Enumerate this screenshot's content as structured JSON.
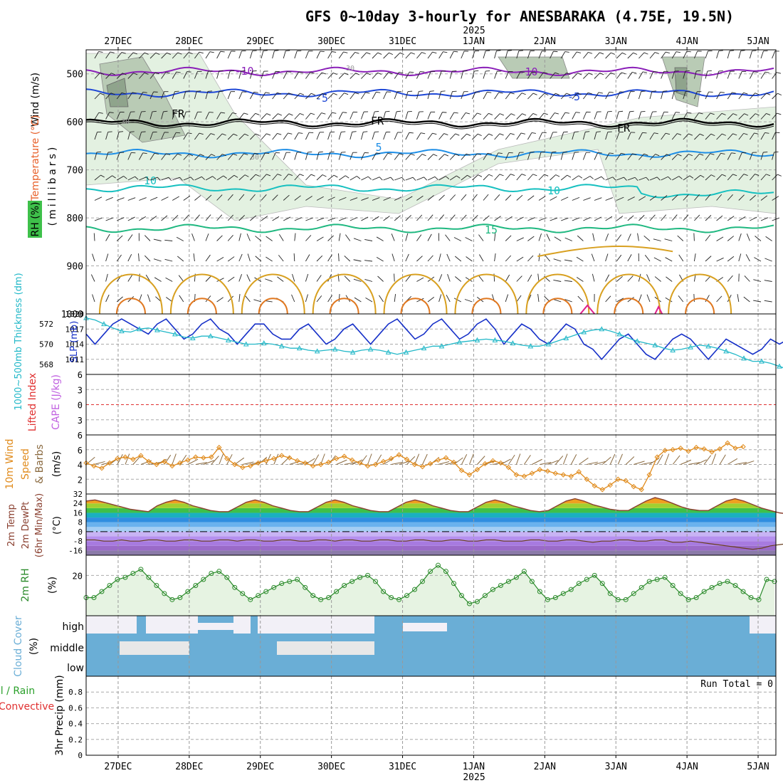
{
  "title": "GFS 0~10day 3-hourly for ANESBARAKA (4.75E, 19.5N)",
  "year_label": "2025",
  "x_axis": {
    "dates": [
      "27DEC",
      "28DEC",
      "29DEC",
      "30DEC",
      "31DEC",
      "1JAN",
      "2JAN",
      "3JAN",
      "4JAN",
      "5JAN"
    ],
    "range_days": [
      -0.45,
      9.25
    ]
  },
  "colors": {
    "rh_band_light": "#e3f1e1",
    "rh_band_mid": "#b9cbb5",
    "rh_band_dark": "#8fa48c",
    "temp_minus10": "#8a1fb8",
    "temp_minus5": "#1f48d6",
    "temp_freezing": "#000000",
    "temp_5": "#1e8ee6",
    "temp_10": "#17c0c0",
    "temp_15": "#1fb880",
    "temp_20": "#d8a020",
    "temp_25": "#e07820",
    "temp_30": "#e0208c",
    "slp": "#1630c8",
    "thickness": "#22b8c8",
    "lifted_index": "#e03030",
    "cape": "#c060e0",
    "wind10m": "#e08a1a",
    "barbs10m": "#8a6a40",
    "temp2m": "#8a4030",
    "rh2m": "#2a8a2a",
    "rh2m_fill": "#e6f3e2",
    "cloud": "#6aaed6",
    "cloud_empty": "#f2f0f7",
    "cloud_gap": "#e8e8e8"
  },
  "panels": {
    "upper_air": {
      "ylabel_wind": "Wind (m/s)",
      "ylabel_temp": "Temperature (°C)",
      "ylabel_rh": "RH (%)",
      "ylabel_unit": "(millibars)",
      "y_ticks": [
        "500",
        "600",
        "700",
        "800",
        "900",
        "1000"
      ],
      "contour_labels": [
        "-10",
        "-10",
        "-5",
        "-5",
        "FR",
        "FR",
        "FR",
        "5",
        "10",
        "10",
        "15",
        "30",
        "30",
        "30"
      ]
    },
    "slp": {
      "ylabel_thk": "1000~500mb Thickness (dm)",
      "ylabel_slp": "SLP (mb)",
      "left_ticks": [
        "572",
        "570",
        "568"
      ],
      "right_ticks": [
        "1020",
        "1017",
        "1014",
        "1011"
      ]
    },
    "cape": {
      "ylabel_li": "Lifted Index",
      "ylabel_cape": "CAPE (J/kg)",
      "ticks": [
        "6",
        "3",
        "0",
        "3",
        "6"
      ]
    },
    "wind10m": {
      "ylabel_a": "10m Wind",
      "ylabel_b": "Speed",
      "ylabel_c": "& Barbs",
      "ylabel_unit": "(m/s)",
      "ticks": [
        "6",
        "4",
        "2"
      ]
    },
    "temp2m": {
      "ylabel_a": "2m Temp",
      "ylabel_b": "2m DewPt",
      "ylabel_c": "(6hr Min/Max)",
      "ylabel_unit": "(°C)",
      "ticks": [
        "32",
        "24",
        "16",
        "8",
        "0",
        "-8",
        "-16"
      ]
    },
    "rh2m": {
      "ylabel": "2m RH",
      "ylabel_unit": "(%)",
      "ticks": [
        "20"
      ]
    },
    "cloud": {
      "ylabel": "Cloud Cover",
      "ylabel_unit": "(%)",
      "levels": [
        "high",
        "middle",
        "low"
      ]
    },
    "precip": {
      "ylabel_a": "Total / Rain",
      "ylabel_b": "Convective",
      "ylabel_c": "3hr Precip (mm)",
      "ticks": [
        "0.8",
        "0.6",
        "0.4",
        "0.2",
        "0"
      ],
      "run_total": "Run Total = 0"
    }
  },
  "chart_data": [
    {
      "name": "upper_air_cross_section",
      "type": "heatmap",
      "y_axis": "pressure (mb)",
      "ylim": [
        1000,
        450
      ],
      "isotherm_mean_pressure": {
        "-10": 495,
        "-5": 540,
        "0": 602,
        "5": 666,
        "10": 738,
        "15": 822
      },
      "x_days_index_step": 0.125
    },
    {
      "name": "slp_thickness",
      "type": "line",
      "x_step_days": 0.125,
      "x_start": -0.45,
      "series": [
        {
          "name": "SLP (mb)",
          "values": [
            1016,
            1014,
            1016,
            1018,
            1019,
            1018,
            1017,
            1016,
            1018,
            1019,
            1017,
            1015,
            1016,
            1018,
            1019,
            1017,
            1016,
            1014,
            1016,
            1018,
            1018,
            1016,
            1015,
            1015,
            1017,
            1018,
            1016,
            1014,
            1015,
            1017,
            1018,
            1016,
            1014,
            1016,
            1018,
            1019,
            1017,
            1015,
            1016,
            1018,
            1019,
            1017,
            1015,
            1016,
            1018,
            1019,
            1017,
            1014,
            1016,
            1018,
            1017,
            1015,
            1014,
            1016,
            1018,
            1017,
            1014,
            1013,
            1011,
            1013,
            1015,
            1016,
            1014,
            1012,
            1011,
            1013,
            1015,
            1016,
            1015,
            1013,
            1011,
            1013,
            1015,
            1014,
            1013,
            1012,
            1013,
            1015,
            1014,
            1015
          ]
        },
        {
          "name": "Thickness (dm)",
          "values": [
            572.6,
            572.4,
            572.0,
            571.6,
            571.3,
            571.2,
            571.5,
            571.6,
            571.4,
            571.2,
            571.0,
            570.7,
            570.6,
            570.8,
            570.8,
            570.6,
            570.4,
            570.2,
            570.0,
            570.0,
            570.1,
            570.0,
            569.8,
            569.6,
            569.6,
            569.4,
            569.3,
            569.4,
            569.5,
            569.3,
            569.2,
            569.4,
            569.5,
            569.4,
            569.2,
            569.0,
            569.2,
            569.4,
            569.6,
            569.8,
            569.8,
            570.0,
            570.2,
            570.3,
            570.4,
            570.5,
            570.4,
            570.3,
            570.1,
            569.9,
            569.8,
            569.8,
            570.0,
            570.3,
            570.6,
            570.9,
            571.2,
            571.4,
            571.5,
            571.3,
            571.0,
            570.6,
            570.3,
            570.1,
            569.9,
            569.6,
            569.4,
            569.5,
            569.7,
            569.9,
            569.8,
            569.6,
            569.3,
            569.0,
            568.6,
            568.3,
            568.3,
            568.1,
            567.8,
            567.5
          ]
        }
      ],
      "ylim_slp": [
        1008,
        1020
      ],
      "ylim_thk": [
        567,
        573
      ]
    },
    {
      "name": "lifted_index_cape",
      "type": "line",
      "series": [
        {
          "name": "Lifted Index",
          "values": []
        }
      ],
      "ylim": [
        -6,
        6
      ]
    },
    {
      "name": "wind10m",
      "type": "line",
      "x_step_days": 0.125,
      "x_start": -0.45,
      "series": [
        {
          "name": "10m Wind Speed (m/s)",
          "values": [
            4.2,
            3.8,
            3.5,
            4.2,
            4.8,
            5.0,
            4.7,
            5.2,
            4.4,
            4.0,
            4.4,
            3.8,
            4.2,
            4.6,
            5.0,
            4.9,
            5.0,
            6.3,
            4.8,
            4.0,
            3.6,
            3.8,
            4.2,
            4.5,
            4.8,
            5.2,
            4.9,
            4.5,
            4.2,
            3.8,
            4.0,
            4.3,
            4.8,
            5.1,
            4.6,
            4.2,
            3.8,
            4.0,
            4.4,
            4.8,
            5.3,
            4.7,
            4.0,
            3.7,
            4.1,
            4.6,
            4.9,
            4.3,
            3.2,
            2.6,
            3.3,
            4.1,
            4.5,
            4.2,
            3.6,
            2.6,
            2.4,
            2.8,
            3.3,
            3.1,
            2.8,
            2.6,
            2.4,
            3.0,
            2.0,
            1.1,
            0.6,
            1.2,
            2.0,
            1.8,
            1.0,
            0.6,
            2.6,
            5.0,
            5.9,
            6.0,
            6.2,
            5.8,
            6.3,
            6.1,
            5.7,
            6.1,
            6.9,
            6.2,
            6.4
          ]
        }
      ],
      "ylim": [
        0,
        8
      ]
    },
    {
      "name": "temp2m",
      "type": "area",
      "x_step_days": 0.125,
      "x_start": -0.45,
      "series": [
        {
          "name": "2m Temp (°C)",
          "values": [
            26,
            27,
            25,
            23,
            21,
            19,
            18,
            17,
            22,
            25,
            27,
            25,
            22,
            20,
            18,
            17,
            17,
            21,
            25,
            27,
            25,
            22,
            20,
            18,
            17,
            17,
            21,
            25,
            27,
            25,
            22,
            20,
            18,
            17,
            17,
            21,
            25,
            27,
            25,
            22,
            20,
            18,
            17,
            17,
            21,
            25,
            27,
            25,
            22,
            20,
            18,
            17,
            18,
            22,
            26,
            28,
            26,
            23,
            21,
            19,
            18,
            18,
            22,
            26,
            29,
            27,
            24,
            21,
            19,
            18,
            18,
            22,
            26,
            28,
            26,
            23,
            20,
            18,
            16,
            15
          ]
        },
        {
          "name": "2m DewPt (°C)",
          "values": [
            -7,
            -7,
            -8,
            -8,
            -7,
            -8,
            -8,
            -7,
            -7,
            -8,
            -8,
            -7,
            -7,
            -8,
            -8,
            -7,
            -7,
            -8,
            -7,
            -7,
            -8,
            -8,
            -7,
            -7,
            -8,
            -8,
            -7,
            -7,
            -8,
            -7,
            -7,
            -8,
            -8,
            -7,
            -7,
            -8,
            -8,
            -7,
            -7,
            -8,
            -8,
            -7,
            -7,
            -8,
            -8,
            -7,
            -7,
            -8,
            -8,
            -8,
            -7,
            -7,
            -8,
            -8,
            -7,
            -7,
            -8,
            -9,
            -8,
            -8,
            -7,
            -7,
            -8,
            -8,
            -7,
            -7,
            -9,
            -9,
            -8,
            -9,
            -10,
            -11,
            -12,
            -13,
            -14,
            -15,
            -14,
            -12,
            -11,
            -10
          ]
        }
      ],
      "ylim": [
        -20,
        32
      ]
    },
    {
      "name": "rh2m",
      "type": "area",
      "x_step_days": 0.125,
      "x_start": -0.45,
      "series": [
        {
          "name": "2m RH (%)",
          "values": [
            9,
            9,
            12,
            15,
            18,
            19,
            21,
            23,
            19,
            15,
            11,
            8,
            9,
            12,
            15,
            18,
            21,
            22,
            19,
            14,
            11,
            8,
            10,
            12,
            14,
            16,
            17,
            18,
            14,
            10,
            8,
            9,
            12,
            15,
            17,
            19,
            20,
            17,
            12,
            9,
            8,
            10,
            13,
            17,
            22,
            25,
            22,
            16,
            10,
            6,
            7,
            10,
            13,
            15,
            17,
            19,
            22,
            17,
            12,
            8,
            9,
            11,
            13,
            16,
            18,
            20,
            16,
            11,
            8,
            8,
            11,
            14,
            17,
            18,
            19,
            15,
            11,
            8,
            9,
            12,
            14,
            16,
            17,
            15,
            12,
            9,
            8,
            18,
            17
          ]
        }
      ],
      "ylim": [
        0,
        30
      ]
    },
    {
      "name": "cloud_cover",
      "type": "heatmap",
      "categories": [
        "high",
        "middle",
        "low"
      ]
    },
    {
      "name": "precip3hr",
      "type": "bar",
      "values": [],
      "ylim": [
        0,
        1.0
      ]
    }
  ]
}
